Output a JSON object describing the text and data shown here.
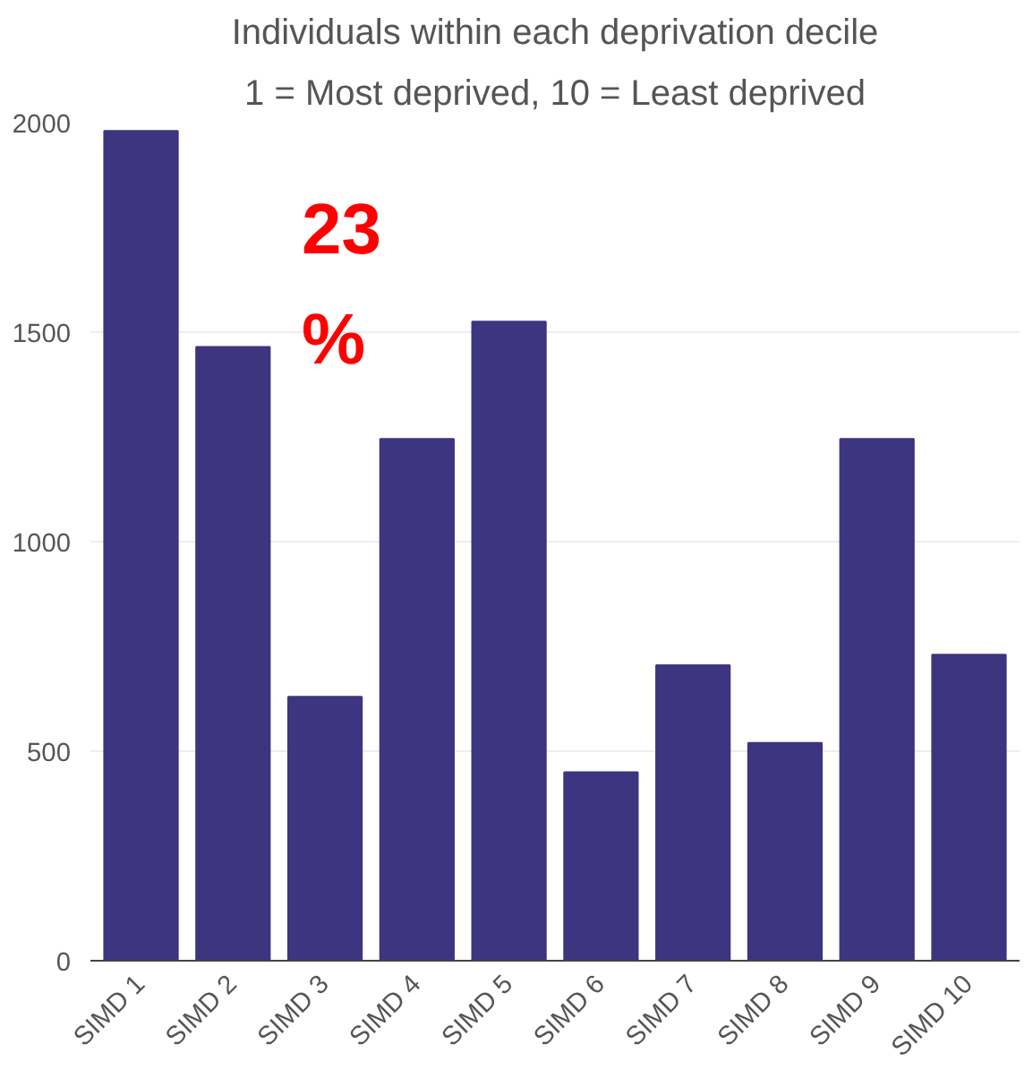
{
  "chart_data": {
    "type": "bar",
    "title": "Individuals within each deprivation decile",
    "subtitle": "1 = Most deprived, 10 = Least deprived",
    "categories": [
      "SIMD 1",
      "SIMD 2",
      "SIMD 3",
      "SIMD 4",
      "SIMD 5",
      "SIMD 6",
      "SIMD 7",
      "SIMD 8",
      "SIMD 9",
      "SIMD 10"
    ],
    "values": [
      1980,
      1465,
      630,
      1245,
      1525,
      450,
      705,
      520,
      1245,
      730
    ],
    "color": "#3d3580",
    "ylim": [
      0,
      2000
    ],
    "yticks": [
      0,
      500,
      1000,
      1500,
      2000
    ],
    "grid": "y",
    "annotations": [
      "23\n%"
    ]
  }
}
